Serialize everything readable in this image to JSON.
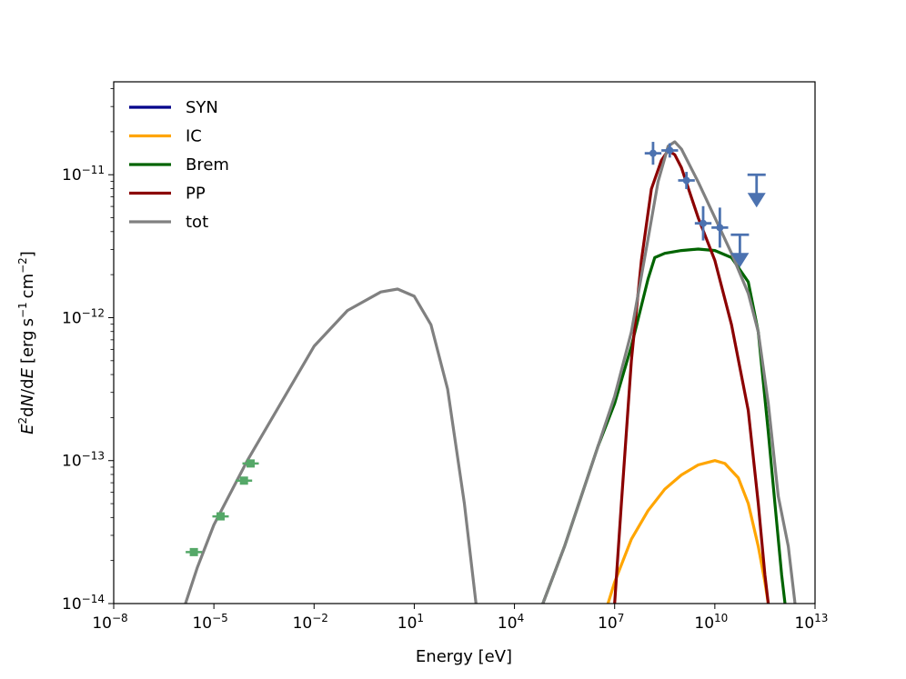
{
  "chart_data": {
    "type": "line",
    "title": "",
    "xlabel": "Energy [eV]",
    "ylabel": "E^2 dN/dE [erg s^-1 cm^-2]",
    "ylabel_parts": {
      "e": "E",
      "e_sup": "2",
      "dn": "d",
      "n": "N",
      "slash": "/d",
      "e2": "E",
      "bracket_open": "[",
      "erg": "erg",
      "s": "s",
      "s_sup": "−1",
      "cm": "cm",
      "cm_sup": "−2",
      "bracket_close": "]"
    },
    "xscale": "log",
    "yscale": "log",
    "xlim_log10": [
      -8,
      13
    ],
    "ylim_log10": [
      -14,
      -10.35
    ],
    "x_ticks": [
      {
        "exp": -8,
        "base": "10",
        "sup": "−8"
      },
      {
        "exp": -5,
        "base": "10",
        "sup": "−5"
      },
      {
        "exp": -2,
        "base": "10",
        "sup": "−2"
      },
      {
        "exp": 1,
        "base": "10",
        "sup": "1"
      },
      {
        "exp": 4,
        "base": "10",
        "sup": "4"
      },
      {
        "exp": 7,
        "base": "10",
        "sup": "7"
      },
      {
        "exp": 10,
        "base": "10",
        "sup": "10"
      },
      {
        "exp": 13,
        "base": "10",
        "sup": "13"
      }
    ],
    "y_ticks": [
      {
        "exp": -14,
        "base": "10",
        "sup": "−14"
      },
      {
        "exp": -13,
        "base": "10",
        "sup": "−13"
      },
      {
        "exp": -12,
        "base": "10",
        "sup": "−12"
      },
      {
        "exp": -11,
        "base": "10",
        "sup": "−11"
      }
    ],
    "legend_position": "upper-left",
    "series": [
      {
        "name": "SYN",
        "color": "#00008b",
        "points_log10": []
      },
      {
        "name": "IC",
        "color": "#ffa500",
        "points_log10": [
          [
            6.8,
            -14.0
          ],
          [
            7.0,
            -13.85
          ],
          [
            7.5,
            -13.55
          ],
          [
            8.0,
            -13.35
          ],
          [
            8.5,
            -13.2
          ],
          [
            9.0,
            -13.1
          ],
          [
            9.5,
            -13.03
          ],
          [
            10.0,
            -13.0
          ],
          [
            10.3,
            -13.02
          ],
          [
            10.7,
            -13.12
          ],
          [
            11.0,
            -13.3
          ],
          [
            11.3,
            -13.6
          ],
          [
            11.5,
            -13.85
          ],
          [
            11.6,
            -14.0
          ]
        ]
      },
      {
        "name": "Brem",
        "color": "#006400",
        "points_log10": [
          [
            4.85,
            -14.0
          ],
          [
            5.5,
            -13.6
          ],
          [
            6.5,
            -12.9
          ],
          [
            7.0,
            -12.6
          ],
          [
            7.5,
            -12.2
          ],
          [
            8.0,
            -11.73
          ],
          [
            8.2,
            -11.58
          ],
          [
            8.5,
            -11.55
          ],
          [
            9.0,
            -11.53
          ],
          [
            9.5,
            -11.52
          ],
          [
            10.0,
            -11.53
          ],
          [
            10.5,
            -11.58
          ],
          [
            11.0,
            -11.75
          ],
          [
            11.3,
            -12.1
          ],
          [
            11.6,
            -12.8
          ],
          [
            11.8,
            -13.3
          ],
          [
            12.0,
            -13.8
          ],
          [
            12.1,
            -14.0
          ]
        ]
      },
      {
        "name": "PP",
        "color": "#8b0000",
        "points_log10": [
          [
            7.0,
            -14.0
          ],
          [
            7.2,
            -13.3
          ],
          [
            7.5,
            -12.3
          ],
          [
            7.8,
            -11.6
          ],
          [
            8.1,
            -11.1
          ],
          [
            8.4,
            -10.9
          ],
          [
            8.6,
            -10.83
          ],
          [
            8.8,
            -10.86
          ],
          [
            9.0,
            -10.95
          ],
          [
            9.5,
            -11.3
          ],
          [
            10.0,
            -11.6
          ],
          [
            10.5,
            -12.05
          ],
          [
            11.0,
            -12.65
          ],
          [
            11.3,
            -13.3
          ],
          [
            11.5,
            -13.8
          ],
          [
            11.6,
            -14.0
          ]
        ]
      },
      {
        "name": "tot",
        "color": "#808080",
        "points_log10": [
          [
            -5.85,
            -14.0
          ],
          [
            -5.5,
            -13.75
          ],
          [
            -5.0,
            -13.45
          ],
          [
            -4.0,
            -13.0
          ],
          [
            -3.0,
            -12.6
          ],
          [
            -2.0,
            -12.2
          ],
          [
            -1.0,
            -11.95
          ],
          [
            0.0,
            -11.82
          ],
          [
            0.5,
            -11.8
          ],
          [
            1.0,
            -11.85
          ],
          [
            1.5,
            -12.05
          ],
          [
            2.0,
            -12.5
          ],
          [
            2.5,
            -13.3
          ],
          [
            2.85,
            -14.0
          ],
          null,
          [
            4.85,
            -14.0
          ],
          [
            5.5,
            -13.6
          ],
          [
            6.5,
            -12.9
          ],
          [
            7.0,
            -12.55
          ],
          [
            7.5,
            -12.1
          ],
          [
            8.0,
            -11.45
          ],
          [
            8.3,
            -11.05
          ],
          [
            8.6,
            -10.8
          ],
          [
            8.8,
            -10.77
          ],
          [
            9.0,
            -10.82
          ],
          [
            9.5,
            -11.05
          ],
          [
            10.0,
            -11.3
          ],
          [
            10.5,
            -11.55
          ],
          [
            11.0,
            -11.83
          ],
          [
            11.3,
            -12.1
          ],
          [
            11.6,
            -12.6
          ],
          [
            11.9,
            -13.25
          ],
          [
            12.2,
            -13.6
          ],
          [
            12.4,
            -14.0
          ]
        ]
      }
    ],
    "radio_points": {
      "color": "#55a868",
      "points_log10": [
        [
          -5.6,
          -13.64
        ],
        [
          -4.8,
          -13.39
        ],
        [
          -4.1,
          -13.14
        ],
        [
          -3.9,
          -13.02
        ]
      ]
    },
    "gamma_points": {
      "color": "#4c72b0",
      "points_log10": [
        [
          8.15,
          -10.85
        ],
        [
          8.65,
          -10.83
        ],
        [
          9.15,
          -11.04
        ],
        [
          9.65,
          -11.34
        ],
        [
          10.15,
          -11.37
        ]
      ],
      "xerr_log10": 0.25,
      "yerr_log10": [
        0.08,
        0.05,
        0.06,
        0.12,
        0.14
      ]
    },
    "upper_limits": {
      "color": "#4c72b0",
      "points_log10": [
        [
          10.75,
          -11.42
        ],
        [
          11.25,
          -11.0
        ]
      ]
    }
  }
}
